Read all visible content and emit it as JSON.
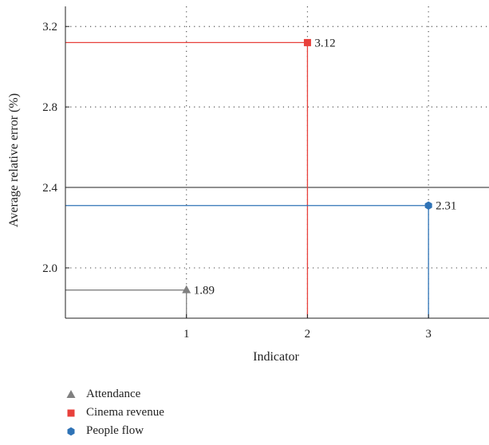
{
  "chart_data": {
    "type": "line",
    "xlabel": "Indicator",
    "ylabel": "Average relative error (%)",
    "xlim": [
      0,
      3.5
    ],
    "ylim": [
      1.75,
      3.3
    ],
    "xticks": [
      1,
      2,
      3
    ],
    "yticks": [
      2.0,
      2.4,
      2.8,
      3.2
    ],
    "ytick_labels": [
      "2.0",
      "2.4",
      "2.8",
      "3.2"
    ],
    "reference_line": 2.4,
    "grid": "dotted",
    "legend_position": "bottom-left",
    "series": [
      {
        "name": "Attendance",
        "x": 1,
        "y": 1.89,
        "label": "1.89",
        "color": "#808080",
        "marker": "triangle"
      },
      {
        "name": "Cinema revenue",
        "x": 2,
        "y": 3.12,
        "label": "3.12",
        "color": "#e8413c",
        "marker": "square"
      },
      {
        "name": "People flow",
        "x": 3,
        "y": 2.31,
        "label": "2.31",
        "color": "#2f73b6",
        "marker": "hexagon"
      }
    ]
  }
}
